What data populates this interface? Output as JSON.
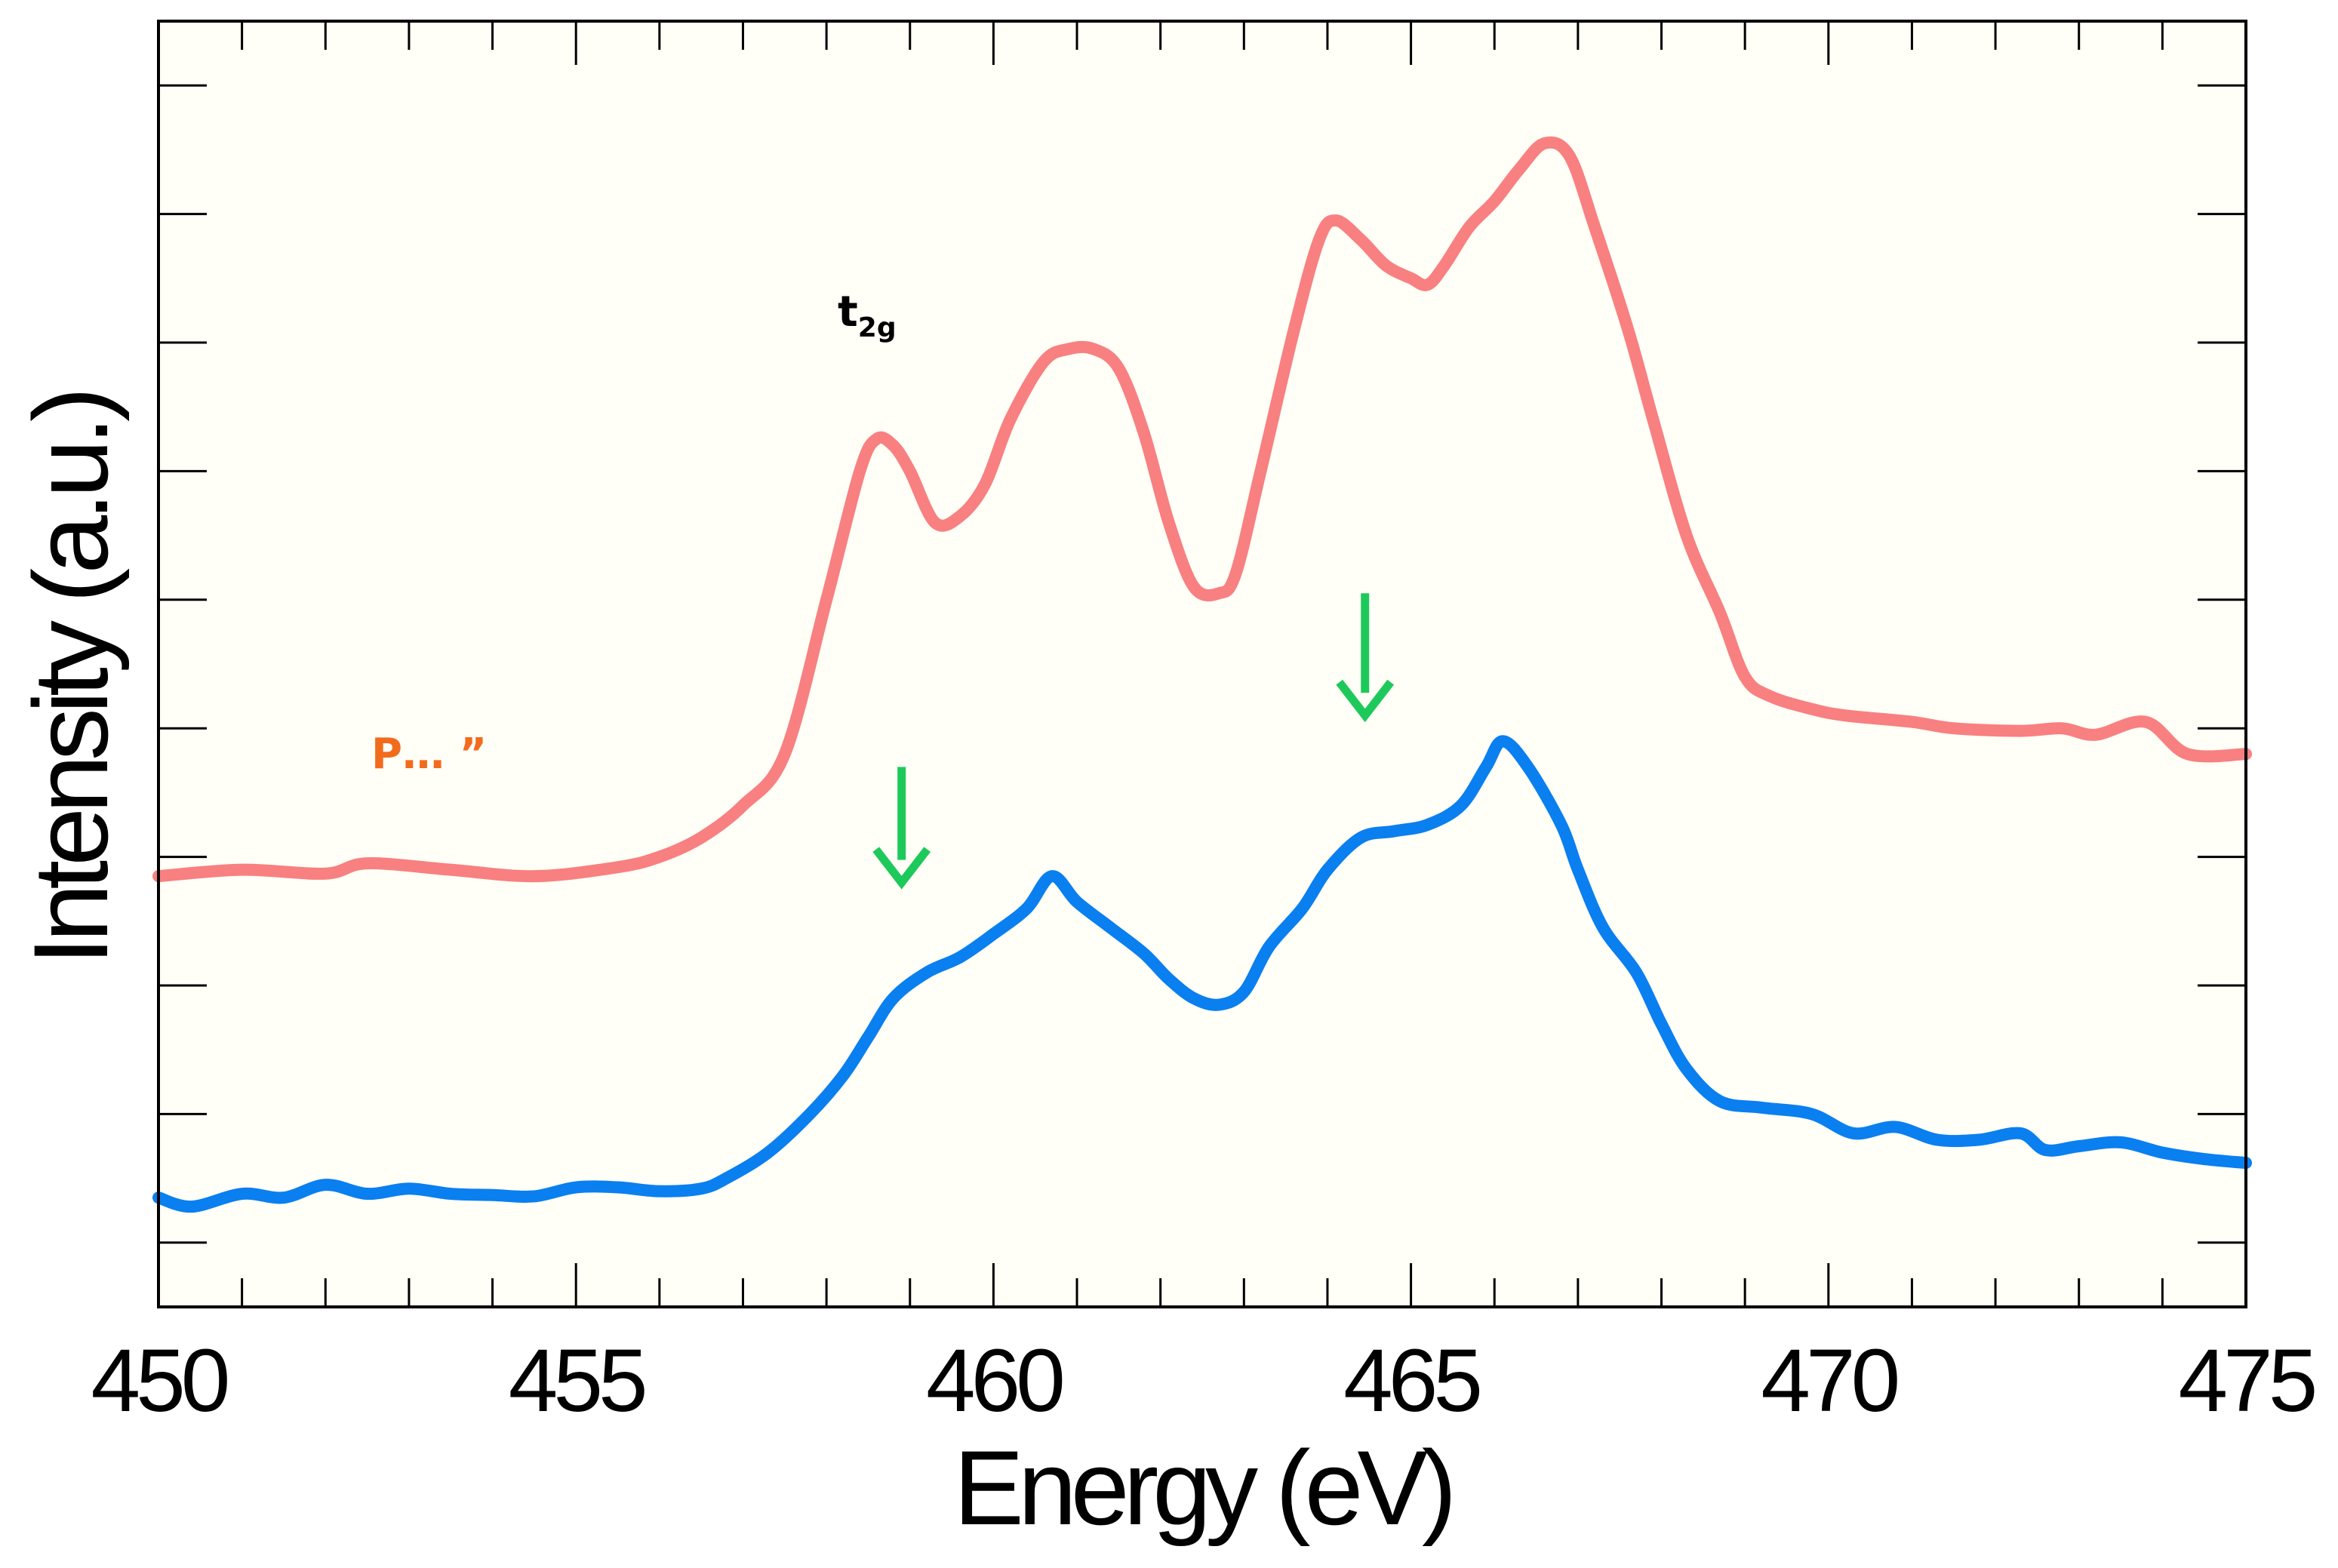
{
  "chart_data": {
    "type": "line",
    "title": "",
    "xlabel": "Energy (eV)",
    "ylabel": "Intensity (a.u.)",
    "xlim": [
      450,
      475
    ],
    "ylim": [
      0,
      10
    ],
    "x_ticks": [
      450,
      455,
      460,
      465,
      470,
      475
    ],
    "x_tick_labels": [
      "450",
      "455",
      "460",
      "465",
      "470",
      "475"
    ],
    "y_ticks": [
      0.5,
      1.5,
      2.5,
      3.5,
      4.5,
      5.5,
      6.5,
      7.5,
      8.5,
      9.5
    ],
    "grid": false,
    "legend": "none",
    "plot_background": "#fffef7",
    "series": [
      {
        "name": "upper spectrum",
        "color": "#f88080",
        "points": [
          [
            450.0,
            3.35
          ],
          [
            451.0,
            3.4
          ],
          [
            452.0,
            3.37
          ],
          [
            452.5,
            3.45
          ],
          [
            453.5,
            3.4
          ],
          [
            454.5,
            3.35
          ],
          [
            455.5,
            3.42
          ],
          [
            456.0,
            3.5
          ],
          [
            456.5,
            3.65
          ],
          [
            457.0,
            3.9
          ],
          [
            457.5,
            4.3
          ],
          [
            458.0,
            5.5
          ],
          [
            458.4,
            6.5
          ],
          [
            458.6,
            6.75
          ],
          [
            458.8,
            6.7
          ],
          [
            459.0,
            6.5
          ],
          [
            459.3,
            6.1
          ],
          [
            459.6,
            6.15
          ],
          [
            459.9,
            6.4
          ],
          [
            460.2,
            6.9
          ],
          [
            460.6,
            7.35
          ],
          [
            460.9,
            7.45
          ],
          [
            461.2,
            7.45
          ],
          [
            461.5,
            7.3
          ],
          [
            461.8,
            6.8
          ],
          [
            462.1,
            6.1
          ],
          [
            462.4,
            5.6
          ],
          [
            462.7,
            5.55
          ],
          [
            462.9,
            5.7
          ],
          [
            463.2,
            6.5
          ],
          [
            463.6,
            7.6
          ],
          [
            463.9,
            8.3
          ],
          [
            464.1,
            8.45
          ],
          [
            464.4,
            8.3
          ],
          [
            464.7,
            8.1
          ],
          [
            465.0,
            8.0
          ],
          [
            465.2,
            7.95
          ],
          [
            465.4,
            8.1
          ],
          [
            465.7,
            8.4
          ],
          [
            466.0,
            8.6
          ],
          [
            466.3,
            8.85
          ],
          [
            466.6,
            9.05
          ],
          [
            466.9,
            8.95
          ],
          [
            467.2,
            8.4
          ],
          [
            467.6,
            7.6
          ],
          [
            467.9,
            6.9
          ],
          [
            468.3,
            6.0
          ],
          [
            468.7,
            5.4
          ],
          [
            469.0,
            4.9
          ],
          [
            469.3,
            4.75
          ],
          [
            469.8,
            4.65
          ],
          [
            470.2,
            4.6
          ],
          [
            471.0,
            4.55
          ],
          [
            471.5,
            4.5
          ],
          [
            472.3,
            4.48
          ],
          [
            472.8,
            4.5
          ],
          [
            473.2,
            4.45
          ],
          [
            473.8,
            4.55
          ],
          [
            474.3,
            4.3
          ],
          [
            475.0,
            4.3
          ]
        ]
      },
      {
        "name": "lower spectrum",
        "color": "#0a7ff0",
        "points": [
          [
            450.0,
            0.85
          ],
          [
            450.4,
            0.78
          ],
          [
            451.0,
            0.88
          ],
          [
            451.5,
            0.85
          ],
          [
            452.0,
            0.95
          ],
          [
            452.5,
            0.88
          ],
          [
            453.0,
            0.92
          ],
          [
            453.5,
            0.88
          ],
          [
            454.0,
            0.87
          ],
          [
            454.5,
            0.86
          ],
          [
            455.0,
            0.93
          ],
          [
            455.5,
            0.93
          ],
          [
            456.0,
            0.9
          ],
          [
            456.5,
            0.92
          ],
          [
            456.8,
            1.0
          ],
          [
            457.3,
            1.2
          ],
          [
            457.8,
            1.5
          ],
          [
            458.2,
            1.8
          ],
          [
            458.5,
            2.1
          ],
          [
            458.8,
            2.4
          ],
          [
            459.2,
            2.6
          ],
          [
            459.6,
            2.72
          ],
          [
            460.0,
            2.9
          ],
          [
            460.4,
            3.1
          ],
          [
            460.7,
            3.35
          ],
          [
            461.0,
            3.15
          ],
          [
            461.4,
            2.95
          ],
          [
            461.8,
            2.75
          ],
          [
            462.1,
            2.55
          ],
          [
            462.4,
            2.4
          ],
          [
            462.7,
            2.35
          ],
          [
            463.0,
            2.45
          ],
          [
            463.3,
            2.8
          ],
          [
            463.7,
            3.1
          ],
          [
            464.0,
            3.4
          ],
          [
            464.4,
            3.65
          ],
          [
            464.8,
            3.7
          ],
          [
            465.2,
            3.75
          ],
          [
            465.6,
            3.9
          ],
          [
            465.9,
            4.2
          ],
          [
            466.1,
            4.4
          ],
          [
            466.4,
            4.2
          ],
          [
            466.8,
            3.75
          ],
          [
            467.0,
            3.4
          ],
          [
            467.3,
            2.95
          ],
          [
            467.7,
            2.6
          ],
          [
            468.0,
            2.2
          ],
          [
            468.3,
            1.85
          ],
          [
            468.7,
            1.6
          ],
          [
            469.2,
            1.55
          ],
          [
            469.8,
            1.5
          ],
          [
            470.3,
            1.35
          ],
          [
            470.8,
            1.4
          ],
          [
            471.3,
            1.3
          ],
          [
            471.8,
            1.3
          ],
          [
            472.3,
            1.35
          ],
          [
            472.6,
            1.22
          ],
          [
            473.0,
            1.25
          ],
          [
            473.5,
            1.28
          ],
          [
            474.0,
            1.2
          ],
          [
            474.5,
            1.15
          ],
          [
            475.0,
            1.12
          ]
        ]
      }
    ],
    "annotations": [
      {
        "text": "t",
        "subscript": "2g",
        "x": 458.8,
        "y": 7.6
      },
      {
        "text": "P… ˮ",
        "x": 452.8,
        "y": 4.35,
        "color": "#f26b1d"
      }
    ],
    "arrows": [
      {
        "x": 458.9,
        "y_from": 4.2,
        "y_to": 3.3,
        "color": "#1ec95b"
      },
      {
        "x": 464.45,
        "y_from": 5.55,
        "y_to": 4.6,
        "color": "#1ec95b"
      }
    ]
  }
}
